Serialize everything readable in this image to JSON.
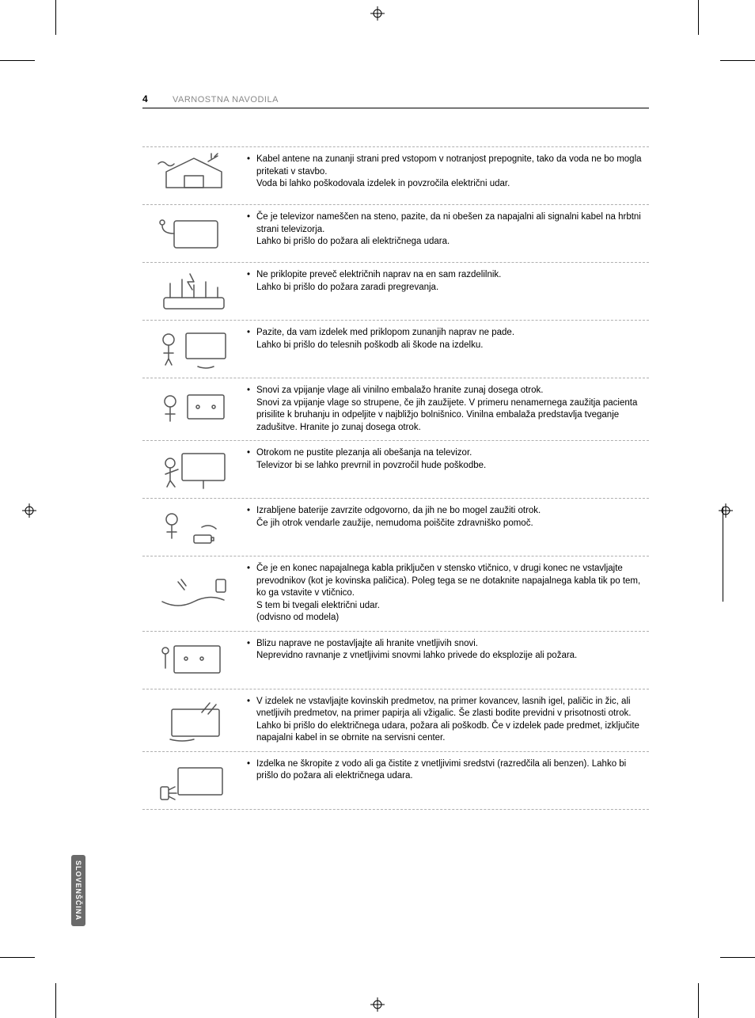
{
  "page_number": "4",
  "section_title": "VARNOSTNA NAVODILA",
  "language_tab": "SLOVENŠČINA",
  "rows": [
    {
      "main": "Kabel antene na zunanji strani pred vstopom v notranjost prepognite, tako da voda ne bo mogla pritekati v stavbo.",
      "sub": "Voda bi lahko poškodovala izdelek in povzročila električni udar.",
      "icon": "house-antenna"
    },
    {
      "main": "Če je televizor nameščen na steno, pazite, da ni obešen za napajalni ali signalni kabel na hrbtni strani televizorja.",
      "sub": "Lahko bi prišlo do požara ali električnega udara.",
      "icon": "tv-wall-cable"
    },
    {
      "main": "Ne priklopite preveč električnih naprav na en sam razdelilnik.",
      "sub": "Lahko bi prišlo do požara zaradi pregrevanja.",
      "icon": "power-strip-overload"
    },
    {
      "main": "Pazite, da vam izdelek med priklopom zunanjih naprav ne pade.",
      "sub": "Lahko bi prišlo do telesnih poškodb ali škode na izdelku.",
      "icon": "tv-falling-child"
    },
    {
      "main": "Snovi za vpijanje vlage ali vinilno embalažo hranite zunaj dosega otrok.",
      "sub": "Snovi za vpijanje vlage so strupene, če jih zaužijete. V primeru nenamernega zaužitja pacienta prisilite k bruhanju in odpeljite v najbližjo bolnišnico. Vinilna embalaža predstavlja tveganje zadušitve. Hranite jo zunaj dosega otrok.",
      "icon": "child-packaging"
    },
    {
      "main": "Otrokom ne pustite plezanja ali obešanja na televizor.",
      "sub": "Televizor bi se lahko prevrnil in povzročil hude poškodbe.",
      "icon": "child-climb-tv"
    },
    {
      "main": "Izrabljene baterije zavrzite odgovorno, da jih ne bo mogel zaužiti otrok.",
      "sub": "Če jih otrok vendarle zaužije, nemudoma poiščite zdravniško pomoč.",
      "icon": "child-battery"
    },
    {
      "main": "Če je en konec napajalnega kabla priključen v stensko vtičnico, v drugi konec ne vstavljajte prevodnikov (kot je kovinska paličica). Poleg tega se ne dotaknite napajalnega kabla tik po tem, ko ga vstavite v vtičnico.",
      "sub": "S tem bi tvegali električni udar.\n(odvisno od modela)",
      "icon": "cable-conductor"
    },
    {
      "main": "Blizu naprave ne postavljajte ali hranite vnetljivih snovi.",
      "sub": "Neprevidno ravnanje z vnetljivimi snovmi lahko privede do eksplozije ali požara.",
      "icon": "tv-flammable"
    },
    {
      "main": "V izdelek ne vstavljajte kovinskih predmetov, na primer kovancev, lasnih igel, paličic in žic, ali vnetljivih predmetov, na primer papirja ali vžigalic. Še zlasti bodite previdni v prisotnosti otrok.",
      "sub": "Lahko bi prišlo do električnega udara, požara ali poškodb. Če v izdelek pade predmet, izključite napajalni kabel in se obrnite na servisni center.",
      "icon": "tv-insert-object"
    },
    {
      "main": "Izdelka ne škropite z vodo ali ga čistite z vnetljivimi sredstvi (razredčila ali benzen). Lahko bi prišlo do požara ali električnega udara.",
      "sub": "",
      "icon": "tv-spray"
    }
  ],
  "colors": {
    "text": "#000000",
    "muted": "#888888",
    "dash": "#b0b0b0",
    "tab_bg": "#6a6a6a",
    "tab_fg": "#ffffff",
    "icon_stroke": "#555555"
  },
  "typography": {
    "body_fontsize_pt": 9,
    "title_fontsize_pt": 8,
    "pagenum_fontsize_pt": 9
  }
}
